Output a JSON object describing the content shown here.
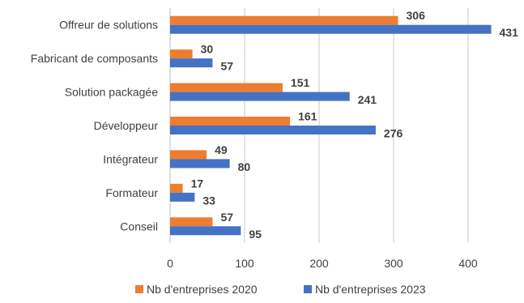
{
  "chart_data": {
    "type": "bar",
    "orientation": "horizontal",
    "categories": [
      "Offreur de solutions",
      "Fabricant de composants",
      "Solution packagée",
      "Développeur",
      "Intégrateur",
      "Formateur",
      "Conseil"
    ],
    "series": [
      {
        "name": "Nb d'entreprises 2020",
        "color": "#ED7D31",
        "values": [
          306,
          30,
          151,
          161,
          49,
          17,
          57
        ]
      },
      {
        "name": "Nb d'entreprises 2023",
        "color": "#4472C4",
        "values": [
          431,
          57,
          241,
          276,
          80,
          33,
          95
        ]
      }
    ],
    "xlim": [
      0,
      460
    ],
    "xticks": [
      0,
      100,
      200,
      300,
      400
    ],
    "grid": true,
    "legend_position": "bottom",
    "data_labels": true
  }
}
